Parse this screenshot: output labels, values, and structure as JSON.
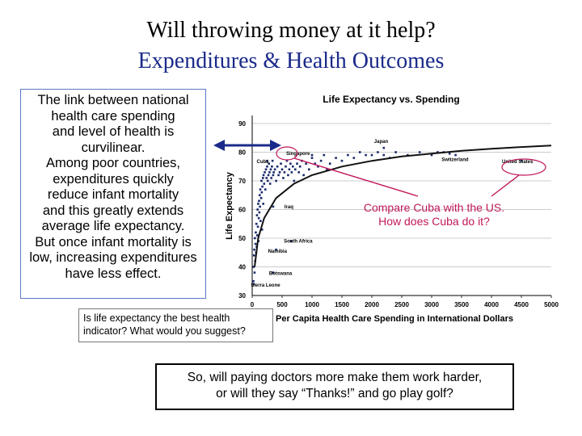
{
  "slide": {
    "title": "Will throwing money at it help?",
    "subtitle": "Expenditures & Health Outcomes",
    "left_text": "The link between national\nhealth care spending\nand level of health is\ncurvilinear.\nAmong poor countries,\nexpenditures quickly\nreduce infant mortality\nand this greatly extends\naverage life expectancy.\nBut once infant mortality is\nlow, increasing expenditures\nhave less effect.",
    "question_box": "Is life expectancy the best health\nindicator? What would you suggest?",
    "bottom_box": "So, will paying doctors more make them work harder,\nor will they say “Thanks!” and go play golf?",
    "annotation_line1": "Compare Cuba with the US.",
    "annotation_line2": "How does Cuba do it?"
  },
  "colors": {
    "subtitle": "#1a2a8a",
    "textbox_border": "#5b78c8",
    "arrow": "#1a2a8a",
    "annotation": "#c0185a",
    "points": "#1a2a6a"
  },
  "chart_data": {
    "type": "scatter",
    "title": "Life Expectancy vs. Spending",
    "xlabel": "Per Capita Health Care Spending in International Dollars",
    "ylabel": "Life Expectancy",
    "xlim": [
      0,
      5000
    ],
    "ylim": [
      30,
      90
    ],
    "xticks": [
      "0",
      "500",
      "1000",
      "1500",
      "2000",
      "2500",
      "3000",
      "3500",
      "4000",
      "4500",
      "5000"
    ],
    "yticks": [
      "30",
      "40",
      "50",
      "60",
      "70",
      "80",
      "90"
    ],
    "grid": "horizontal",
    "trendline": [
      [
        40,
        40
      ],
      [
        100,
        50
      ],
      [
        200,
        57
      ],
      [
        400,
        64
      ],
      [
        700,
        69
      ],
      [
        1000,
        72
      ],
      [
        1500,
        75
      ],
      [
        2000,
        77
      ],
      [
        2500,
        78.5
      ],
      [
        3000,
        79.5
      ],
      [
        3500,
        80.5
      ],
      [
        4000,
        81.2
      ],
      [
        4500,
        81.8
      ],
      [
        5000,
        82.3
      ]
    ],
    "labeled_points": [
      {
        "label": "Japan",
        "x": 2200,
        "y": 81.5
      },
      {
        "label": "Singapore",
        "x": 1000,
        "y": 79
      },
      {
        "label": "Switzerland",
        "x": 3300,
        "y": 79.5
      },
      {
        "label": "Cuba",
        "x": 250,
        "y": 77
      },
      {
        "label": "United States",
        "x": 4500,
        "y": 77
      },
      {
        "label": "Iraq",
        "x": 350,
        "y": 61
      },
      {
        "label": "South Africa",
        "x": 650,
        "y": 49
      },
      {
        "label": "Namibia",
        "x": 400,
        "y": 46
      },
      {
        "label": "Botswana",
        "x": 350,
        "y": 38
      },
      {
        "label": "Sierra Leone",
        "x": 30,
        "y": 34
      }
    ],
    "points": [
      [
        20,
        35
      ],
      [
        25,
        40
      ],
      [
        30,
        44
      ],
      [
        35,
        46
      ],
      [
        40,
        38
      ],
      [
        45,
        50
      ],
      [
        50,
        42
      ],
      [
        55,
        48
      ],
      [
        60,
        52
      ],
      [
        65,
        45
      ],
      [
        70,
        55
      ],
      [
        75,
        47
      ],
      [
        80,
        58
      ],
      [
        85,
        51
      ],
      [
        90,
        60
      ],
      [
        95,
        54
      ],
      [
        100,
        62
      ],
      [
        105,
        49
      ],
      [
        110,
        57
      ],
      [
        115,
        63
      ],
      [
        120,
        59
      ],
      [
        125,
        65
      ],
      [
        130,
        61
      ],
      [
        135,
        67
      ],
      [
        140,
        56
      ],
      [
        150,
        64
      ],
      [
        155,
        70
      ],
      [
        160,
        66
      ],
      [
        165,
        53
      ],
      [
        170,
        68
      ],
      [
        180,
        71
      ],
      [
        185,
        62
      ],
      [
        190,
        72
      ],
      [
        200,
        69
      ],
      [
        210,
        73
      ],
      [
        220,
        67
      ],
      [
        230,
        74
      ],
      [
        240,
        71
      ],
      [
        250,
        75
      ],
      [
        260,
        70
      ],
      [
        270,
        72
      ],
      [
        280,
        76
      ],
      [
        290,
        73
      ],
      [
        300,
        69
      ],
      [
        310,
        74
      ],
      [
        320,
        71
      ],
      [
        330,
        75
      ],
      [
        340,
        77
      ],
      [
        350,
        72
      ],
      [
        360,
        73
      ],
      [
        380,
        74
      ],
      [
        400,
        70
      ],
      [
        420,
        75
      ],
      [
        440,
        72
      ],
      [
        460,
        73
      ],
      [
        480,
        76
      ],
      [
        500,
        74
      ],
      [
        520,
        71
      ],
      [
        540,
        73
      ],
      [
        560,
        75
      ],
      [
        580,
        77
      ],
      [
        600,
        72
      ],
      [
        620,
        74
      ],
      [
        640,
        76
      ],
      [
        660,
        73
      ],
      [
        680,
        75
      ],
      [
        700,
        70
      ],
      [
        720,
        74
      ],
      [
        750,
        76
      ],
      [
        780,
        73
      ],
      [
        800,
        75
      ],
      [
        830,
        77
      ],
      [
        860,
        72
      ],
      [
        900,
        76
      ],
      [
        950,
        74
      ],
      [
        1000,
        78
      ],
      [
        1050,
        76
      ],
      [
        1100,
        75
      ],
      [
        1150,
        77
      ],
      [
        1200,
        79
      ],
      [
        1250,
        74
      ],
      [
        1300,
        76
      ],
      [
        1400,
        78
      ],
      [
        1500,
        77
      ],
      [
        1600,
        79
      ],
      [
        1700,
        78
      ],
      [
        1800,
        80
      ],
      [
        1900,
        79
      ],
      [
        2000,
        79
      ],
      [
        2100,
        80
      ],
      [
        2200,
        79
      ],
      [
        2300,
        78
      ],
      [
        2400,
        80
      ],
      [
        2600,
        79
      ],
      [
        2800,
        80
      ],
      [
        3000,
        79
      ],
      [
        3100,
        80
      ],
      [
        3200,
        80
      ],
      [
        3400,
        79
      ]
    ]
  }
}
